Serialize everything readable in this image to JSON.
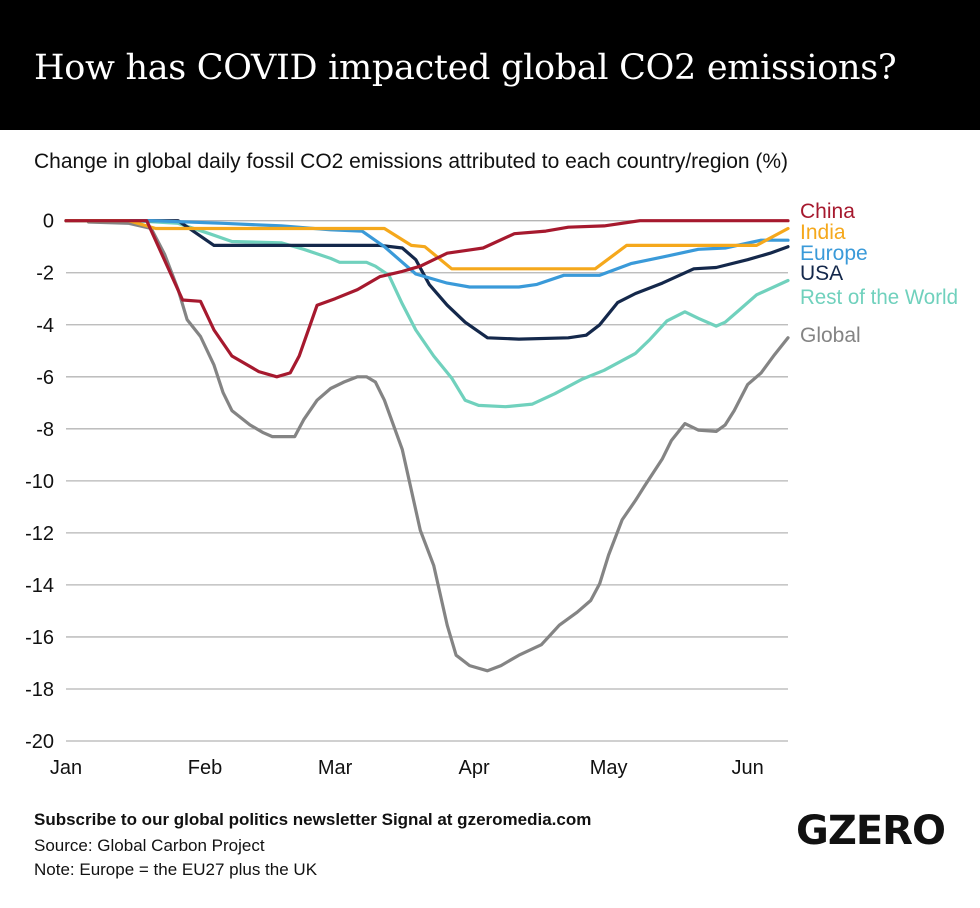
{
  "title": "How has COVID impacted global CO2 emissions?",
  "subtitle": "Change in global daily fossil CO2 emissions attributed to each country/region (%)",
  "footer": {
    "subscribe": "Subscribe to our global politics newsletter Signal at gzeromedia.com",
    "source": "Source: Global Carbon Project",
    "note": "Note: Europe = the EU27 plus the UK"
  },
  "logo": "GZERO",
  "chart_data": {
    "type": "line",
    "title": "Change in global daily fossil CO2 emissions attributed to each country/region (%)",
    "xlabel": "",
    "ylabel": "",
    "x_unit": "day of year 2020 (0 = Jan 1)",
    "xlim": [
      0,
      161
    ],
    "ylim": [
      -20,
      0
    ],
    "yticks": [
      0,
      -2,
      -4,
      -6,
      -8,
      -10,
      -12,
      -14,
      -16,
      -18,
      -20
    ],
    "xticks": [
      {
        "label": "Jan",
        "day": 0
      },
      {
        "label": "Feb",
        "day": 31
      },
      {
        "label": "Mar",
        "day": 60
      },
      {
        "label": "Apr",
        "day": 91
      },
      {
        "label": "May",
        "day": 121
      },
      {
        "label": "Jun",
        "day": 152
      }
    ],
    "grid": true,
    "legend": "right, labels at line ends",
    "series": [
      {
        "name": "Global",
        "color": "#848484",
        "points": [
          [
            5,
            -0.05
          ],
          [
            14,
            -0.1
          ],
          [
            19,
            -0.3
          ],
          [
            22,
            -1.3
          ],
          [
            25,
            -2.65
          ],
          [
            27,
            -3.8
          ],
          [
            30,
            -4.45
          ],
          [
            33,
            -5.55
          ],
          [
            35,
            -6.6
          ],
          [
            37,
            -7.3
          ],
          [
            41,
            -7.85
          ],
          [
            44,
            -8.15
          ],
          [
            46,
            -8.3
          ],
          [
            51,
            -8.3
          ],
          [
            53,
            -7.65
          ],
          [
            56,
            -6.9
          ],
          [
            59,
            -6.45
          ],
          [
            62,
            -6.2
          ],
          [
            65,
            -6.0
          ],
          [
            67,
            -6.0
          ],
          [
            69,
            -6.2
          ],
          [
            71,
            -6.9
          ],
          [
            75,
            -8.8
          ],
          [
            77,
            -10.35
          ],
          [
            79,
            -11.9
          ],
          [
            82,
            -13.25
          ],
          [
            85,
            -15.55
          ],
          [
            87,
            -16.7
          ],
          [
            90,
            -17.1
          ],
          [
            94,
            -17.3
          ],
          [
            97,
            -17.1
          ],
          [
            101,
            -16.7
          ],
          [
            106,
            -16.3
          ],
          [
            110,
            -15.55
          ],
          [
            114,
            -15.05
          ],
          [
            117,
            -14.6
          ],
          [
            119,
            -13.95
          ],
          [
            121,
            -12.85
          ],
          [
            124,
            -11.5
          ],
          [
            127,
            -10.75
          ],
          [
            129,
            -10.2
          ],
          [
            133,
            -9.15
          ],
          [
            135,
            -8.45
          ],
          [
            138,
            -7.8
          ],
          [
            141,
            -8.05
          ],
          [
            145,
            -8.1
          ],
          [
            147,
            -7.85
          ],
          [
            149,
            -7.3
          ],
          [
            152,
            -6.3
          ],
          [
            155,
            -5.85
          ],
          [
            158,
            -5.15
          ],
          [
            161,
            -4.5
          ]
        ]
      },
      {
        "name": "Rest of the World",
        "color": "#70d1bd",
        "points": [
          [
            0,
            0
          ],
          [
            15,
            0
          ],
          [
            25,
            -0.1
          ],
          [
            32,
            -0.5
          ],
          [
            37,
            -0.8
          ],
          [
            48,
            -0.85
          ],
          [
            53,
            -1.1
          ],
          [
            59,
            -1.45
          ],
          [
            61,
            -1.6
          ],
          [
            67,
            -1.6
          ],
          [
            69,
            -1.75
          ],
          [
            72,
            -2.1
          ],
          [
            75,
            -3.2
          ],
          [
            78,
            -4.2
          ],
          [
            82,
            -5.2
          ],
          [
            86,
            -6.05
          ],
          [
            89,
            -6.9
          ],
          [
            92,
            -7.1
          ],
          [
            98,
            -7.15
          ],
          [
            104,
            -7.05
          ],
          [
            109,
            -6.65
          ],
          [
            115,
            -6.1
          ],
          [
            120,
            -5.75
          ],
          [
            127,
            -5.1
          ],
          [
            130,
            -4.6
          ],
          [
            134,
            -3.85
          ],
          [
            138,
            -3.5
          ],
          [
            141,
            -3.75
          ],
          [
            145,
            -4.05
          ],
          [
            147,
            -3.9
          ],
          [
            150,
            -3.45
          ],
          [
            154,
            -2.85
          ],
          [
            161,
            -2.3
          ]
        ]
      },
      {
        "name": "USA",
        "color": "#14284b",
        "points": [
          [
            0,
            0
          ],
          [
            25,
            0
          ],
          [
            33,
            -0.95
          ],
          [
            70,
            -0.95
          ],
          [
            75,
            -1.05
          ],
          [
            78,
            -1.5
          ],
          [
            81,
            -2.45
          ],
          [
            85,
            -3.25
          ],
          [
            89,
            -3.9
          ],
          [
            94,
            -4.5
          ],
          [
            101,
            -4.55
          ],
          [
            112,
            -4.5
          ],
          [
            116,
            -4.4
          ],
          [
            119,
            -4.0
          ],
          [
            123,
            -3.15
          ],
          [
            127,
            -2.8
          ],
          [
            133,
            -2.4
          ],
          [
            140,
            -1.85
          ],
          [
            145,
            -1.8
          ],
          [
            152,
            -1.5
          ],
          [
            157,
            -1.25
          ],
          [
            161,
            -1.0
          ]
        ]
      },
      {
        "name": "Europe",
        "color": "#3a9ad9",
        "points": [
          [
            0,
            0
          ],
          [
            19,
            0
          ],
          [
            35,
            -0.1
          ],
          [
            48,
            -0.2
          ],
          [
            59,
            -0.35
          ],
          [
            66,
            -0.4
          ],
          [
            71,
            -1.0
          ],
          [
            75,
            -1.6
          ],
          [
            78,
            -2.05
          ],
          [
            85,
            -2.4
          ],
          [
            90,
            -2.55
          ],
          [
            101,
            -2.55
          ],
          [
            105,
            -2.45
          ],
          [
            111,
            -2.1
          ],
          [
            119,
            -2.1
          ],
          [
            126,
            -1.65
          ],
          [
            133,
            -1.4
          ],
          [
            141,
            -1.1
          ],
          [
            147,
            -1.05
          ],
          [
            155,
            -0.75
          ],
          [
            161,
            -0.75
          ]
        ]
      },
      {
        "name": "India",
        "color": "#f5a81c",
        "points": [
          [
            0,
            0
          ],
          [
            14,
            0
          ],
          [
            20,
            -0.3
          ],
          [
            71,
            -0.3
          ],
          [
            77,
            -0.95
          ],
          [
            80,
            -1.0
          ],
          [
            86,
            -1.85
          ],
          [
            118,
            -1.85
          ],
          [
            125,
            -0.95
          ],
          [
            154,
            -0.95
          ],
          [
            161,
            -0.3
          ]
        ]
      },
      {
        "name": "China",
        "color": "#a6192e",
        "points": [
          [
            0,
            0
          ],
          [
            18,
            0
          ],
          [
            26,
            -3.05
          ],
          [
            30,
            -3.1
          ],
          [
            33,
            -4.2
          ],
          [
            37,
            -5.2
          ],
          [
            43,
            -5.8
          ],
          [
            47,
            -6.0
          ],
          [
            50,
            -5.85
          ],
          [
            52,
            -5.2
          ],
          [
            56,
            -3.25
          ],
          [
            60,
            -3.0
          ],
          [
            65,
            -2.65
          ],
          [
            70,
            -2.15
          ],
          [
            75,
            -1.95
          ],
          [
            79,
            -1.75
          ],
          [
            85,
            -1.25
          ],
          [
            91,
            -1.1
          ],
          [
            93,
            -1.05
          ],
          [
            100,
            -0.5
          ],
          [
            107,
            -0.4
          ],
          [
            112,
            -0.25
          ],
          [
            120,
            -0.2
          ],
          [
            128,
            0
          ],
          [
            161,
            0
          ]
        ]
      }
    ],
    "labels_order": [
      "China",
      "India",
      "Europe",
      "USA",
      "Rest of the World",
      "Global"
    ]
  }
}
